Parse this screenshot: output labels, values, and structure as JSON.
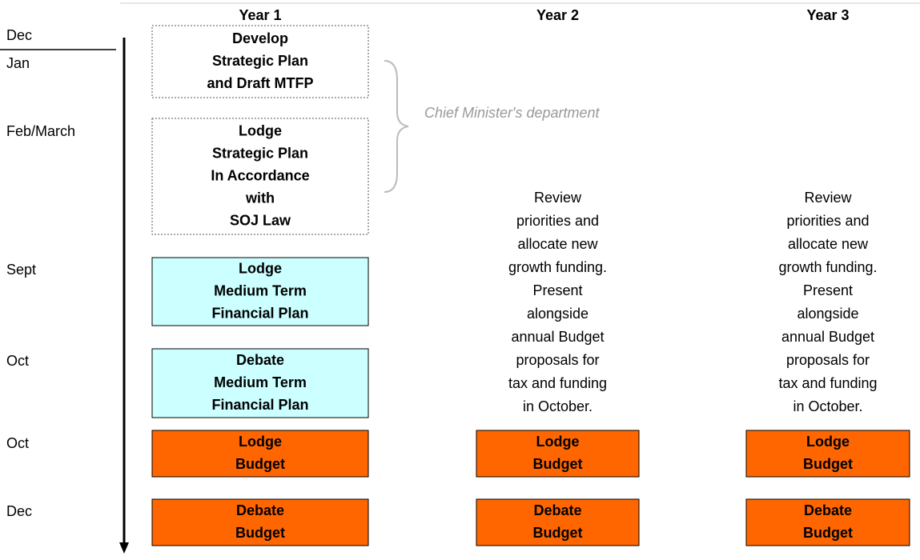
{
  "months": [
    "Dec",
    "Jan",
    "Feb/March",
    "Sept",
    "Oct",
    "Oct",
    "Dec"
  ],
  "brace_label": "Chief Minister's department",
  "columns": [
    {
      "header": "Year 1",
      "boxes": [
        {
          "lines": [
            "Develop",
            "Strategic Plan",
            "and Draft MTFP"
          ]
        },
        {
          "lines": [
            "Lodge",
            "Strategic Plan",
            "In Accordance",
            "with",
            "SOJ Law"
          ]
        },
        {
          "lines": [
            "Lodge",
            "Medium Term",
            "Financial Plan"
          ]
        },
        {
          "lines": [
            "Debate",
            "Medium Term",
            "Financial Plan"
          ]
        },
        {
          "lines": [
            "Lodge",
            "Budget"
          ]
        },
        {
          "lines": [
            "Debate",
            "Budget"
          ]
        }
      ]
    },
    {
      "header": "Year 2",
      "note": [
        "Review",
        "priorities and",
        "allocate new",
        "growth funding.",
        "Present",
        "alongside",
        "annual Budget",
        "proposals for",
        "tax and funding",
        "in October."
      ],
      "boxes": [
        {
          "lines": [
            "Lodge",
            "Budget"
          ]
        },
        {
          "lines": [
            "Debate",
            "Budget"
          ]
        }
      ]
    },
    {
      "header": "Year 3",
      "note": [
        "Review",
        "priorities and",
        "allocate new",
        "growth funding.",
        "Present",
        "alongside",
        "annual Budget",
        "proposals for",
        "tax and funding",
        "in October."
      ],
      "boxes": [
        {
          "lines": [
            "Lodge",
            "Budget"
          ]
        },
        {
          "lines": [
            "Debate",
            "Budget"
          ]
        }
      ]
    }
  ]
}
